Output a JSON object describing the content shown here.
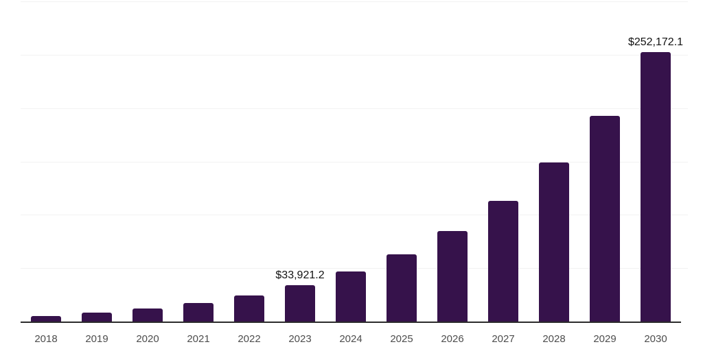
{
  "chart_data": {
    "type": "bar",
    "title": "",
    "xlabel": "",
    "ylabel": "",
    "categories": [
      "2018",
      "2019",
      "2020",
      "2021",
      "2022",
      "2023",
      "2024",
      "2025",
      "2026",
      "2027",
      "2028",
      "2029",
      "2030"
    ],
    "values": [
      5400,
      8500,
      12400,
      17500,
      24400,
      33921.2,
      46800,
      63000,
      85000,
      113000,
      149000,
      193000,
      252172.1
    ],
    "data_labels": {
      "2023": "$33,921.2",
      "2030": "$252,172.1"
    },
    "ylim": [
      0,
      300000
    ],
    "gridline_interval": 50000,
    "grid": "horizontal",
    "legend": "none",
    "y_axis_labels_visible": false
  },
  "colors": {
    "bar": "#36124b",
    "gridline": "#f2f2f2",
    "axis_line": "#2b2b2b",
    "x_tick_label": "#4d4d4d",
    "data_label": "#111111",
    "background": "#ffffff"
  }
}
